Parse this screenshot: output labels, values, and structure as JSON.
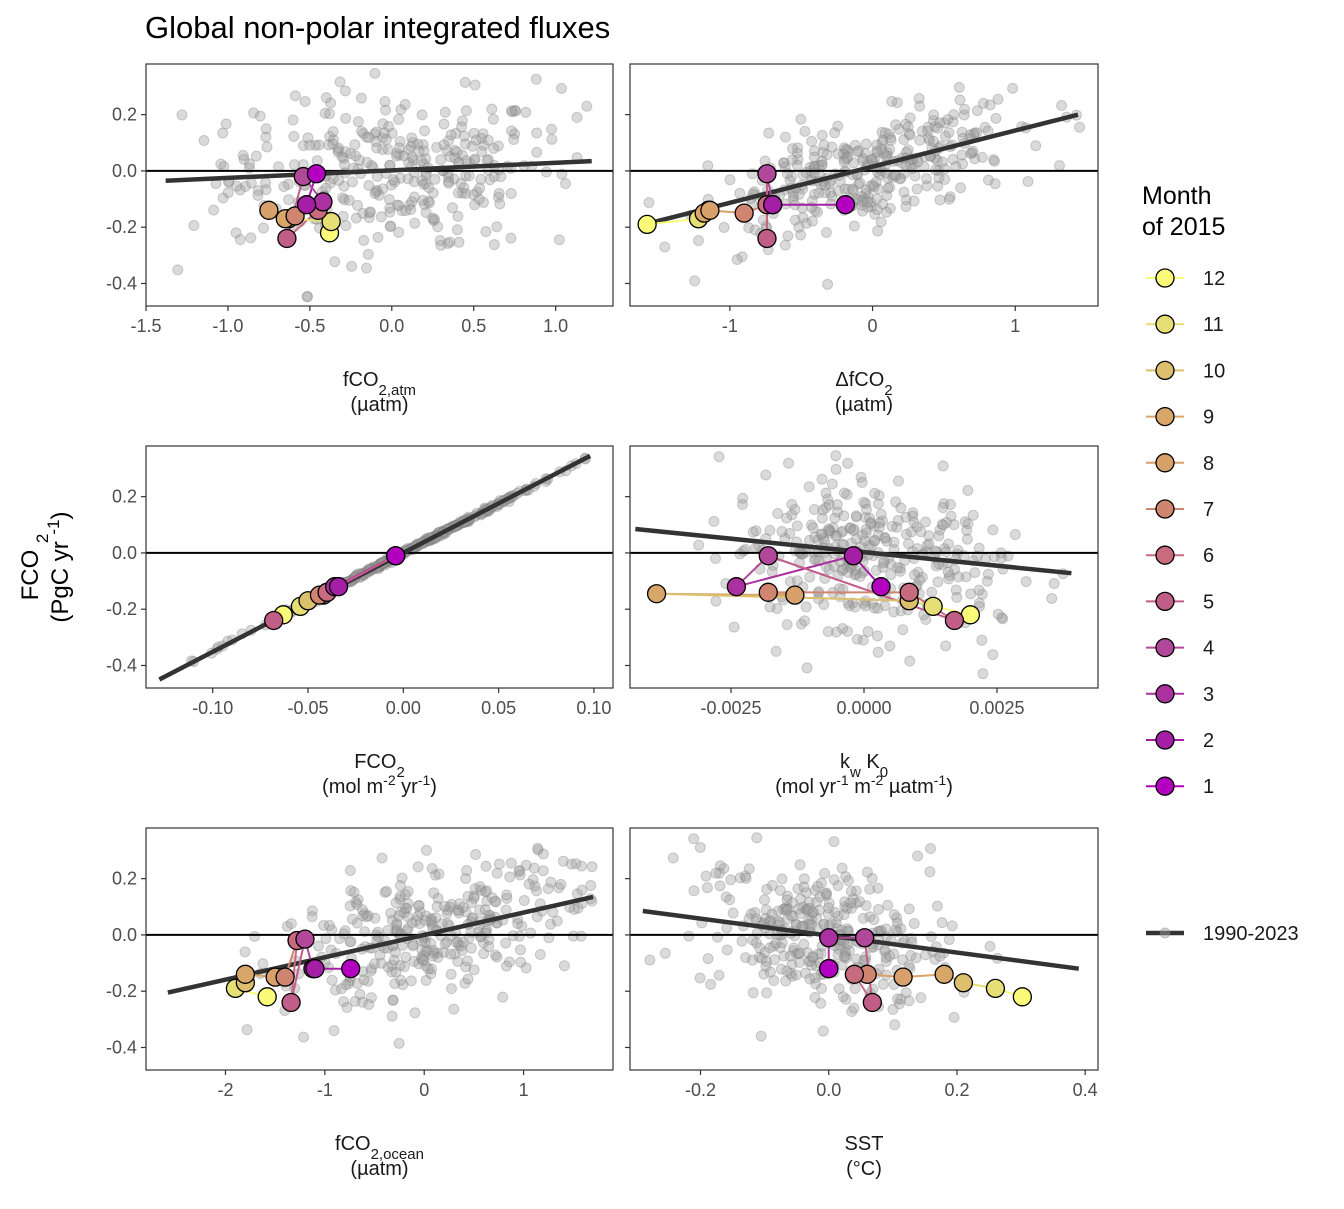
{
  "title": "Global non-polar integrated fluxes",
  "y_axis": {
    "label_line1": "FCO2",
    "label_line2": "(PgC yr-1)"
  },
  "legend": {
    "title_line1": "Month",
    "title_line2": "of 2015",
    "months": [
      "12",
      "11",
      "10",
      "9",
      "8",
      "7",
      "6",
      "5",
      "4",
      "3",
      "2",
      "1"
    ],
    "month_colors": {
      "1": "#b300c0",
      "2": "#a51fa6",
      "3": "#ab30a0",
      "4": "#b2489a",
      "5": "#c05e88",
      "6": "#c86b7e",
      "7": "#d08570",
      "8": "#d8a06a",
      "9": "#d9a66a",
      "10": "#dcc06e",
      "11": "#e6df76",
      "12": "#fbfb7a"
    },
    "line_label": "1990-2023",
    "line_color": "#333333",
    "background_point_color": "#9e9e9e"
  },
  "chart_data": [
    {
      "type": "scatter",
      "panel": "fco2-atm",
      "xlabel_main": "fCO",
      "xlabel_sub": "2,atm",
      "xlabel_unit": "(µatm)",
      "xlim": [
        -1.5,
        1.35
      ],
      "ylim": [
        -0.48,
        0.38
      ],
      "xticks": [
        -1.5,
        -1.0,
        -0.5,
        0.0,
        0.5,
        1.0
      ],
      "xtick_labels": [
        "-1.5",
        "-1.0",
        "-0.5",
        "0.0",
        "0.5",
        "1.0"
      ],
      "yticks": [
        -0.4,
        -0.2,
        0.0,
        0.2
      ],
      "ytick_labels": [
        "-0.4",
        "-0.2",
        "0.0",
        "0.2"
      ],
      "trend": {
        "x": [
          -1.38,
          1.22
        ],
        "y": [
          -0.035,
          0.035
        ]
      },
      "background": {
        "x_center": 0.0,
        "x_spread": 0.5,
        "x_min": -1.38,
        "x_max": 1.24,
        "slope": 0.027,
        "noise": 0.13
      },
      "months": [
        {
          "month": 1,
          "x": -0.46,
          "y": -0.01
        },
        {
          "month": 2,
          "x": -0.52,
          "y": -0.12
        },
        {
          "month": 3,
          "x": -0.42,
          "y": -0.11
        },
        {
          "month": 4,
          "x": -0.54,
          "y": -0.02
        },
        {
          "month": 5,
          "x": -0.64,
          "y": -0.24
        },
        {
          "month": 6,
          "x": -0.45,
          "y": -0.14
        },
        {
          "month": 7,
          "x": -0.59,
          "y": -0.16
        },
        {
          "month": 8,
          "x": -0.75,
          "y": -0.14
        },
        {
          "month": 9,
          "x": -0.65,
          "y": -0.17
        },
        {
          "month": 10,
          "x": -0.63,
          "y": -0.17
        },
        {
          "month": 11,
          "x": -0.37,
          "y": -0.18
        },
        {
          "month": 12,
          "x": -0.38,
          "y": -0.22
        }
      ]
    },
    {
      "type": "scatter",
      "panel": "delta-fco2",
      "xlabel_main": "ΔfCO",
      "xlabel_sub": "2",
      "xlabel_unit": "(µatm)",
      "xlim": [
        -1.7,
        1.58
      ],
      "ylim": [
        -0.48,
        0.38
      ],
      "xticks": [
        -1,
        0,
        1
      ],
      "xtick_labels": [
        "-1",
        "0",
        "1"
      ],
      "yticks": [
        -0.4,
        -0.2,
        0.0,
        0.2
      ],
      "ytick_labels": [
        "-0.4",
        "-0.2",
        "0.0",
        "0.2"
      ],
      "trend": {
        "x": [
          -1.52,
          1.44
        ],
        "y": [
          -0.18,
          0.2
        ]
      },
      "background": {
        "x_center": 0.0,
        "x_spread": 0.55,
        "x_min": -1.62,
        "x_max": 1.48,
        "slope": 0.13,
        "noise": 0.09
      },
      "months": [
        {
          "month": 1,
          "x": -0.19,
          "y": -0.12
        },
        {
          "month": 2,
          "x": -0.7,
          "y": -0.12
        },
        {
          "month": 3,
          "x": -0.7,
          "y": -0.12
        },
        {
          "month": 4,
          "x": -0.74,
          "y": -0.01
        },
        {
          "month": 5,
          "x": -0.74,
          "y": -0.24
        },
        {
          "month": 6,
          "x": -0.74,
          "y": -0.12
        },
        {
          "month": 7,
          "x": -0.9,
          "y": -0.15
        },
        {
          "month": 8,
          "x": -1.14,
          "y": -0.14
        },
        {
          "month": 9,
          "x": -1.18,
          "y": -0.15
        },
        {
          "month": 10,
          "x": -1.15,
          "y": -0.14
        },
        {
          "month": 11,
          "x": -1.22,
          "y": -0.17
        },
        {
          "month": 12,
          "x": -1.58,
          "y": -0.19
        }
      ]
    },
    {
      "type": "scatter",
      "panel": "fco2-flux",
      "xlabel_main": "FCO",
      "xlabel_sub": "2",
      "xlabel_unit": "(mol m-2 yr-1)",
      "xlim": [
        -0.135,
        0.11
      ],
      "ylim": [
        -0.48,
        0.38
      ],
      "xticks": [
        -0.1,
        -0.05,
        0.0,
        0.05,
        0.1
      ],
      "xtick_labels": [
        "-0.10",
        "-0.05",
        "0.00",
        "0.05",
        "0.10"
      ],
      "yticks": [
        -0.4,
        -0.2,
        0.0,
        0.2
      ],
      "ytick_labels": [
        "-0.4",
        "-0.2",
        "0.0",
        "0.2"
      ],
      "trend": {
        "x": [
          -0.128,
          0.098
        ],
        "y": [
          -0.45,
          0.345
        ]
      },
      "background": {
        "x_center": 0.0,
        "x_spread": 0.04,
        "x_min": -0.128,
        "x_max": 0.098,
        "slope": 3.5,
        "noise": 0.004
      },
      "months": [
        {
          "month": 1,
          "x": -0.004,
          "y": -0.01
        },
        {
          "month": 2,
          "x": -0.034,
          "y": -0.12
        },
        {
          "month": 3,
          "x": -0.036,
          "y": -0.12
        },
        {
          "month": 4,
          "x": -0.004,
          "y": -0.01
        },
        {
          "month": 5,
          "x": -0.068,
          "y": -0.24
        },
        {
          "month": 6,
          "x": -0.04,
          "y": -0.14
        },
        {
          "month": 7,
          "x": -0.044,
          "y": -0.15
        },
        {
          "month": 8,
          "x": -0.04,
          "y": -0.14
        },
        {
          "month": 9,
          "x": -0.042,
          "y": -0.15
        },
        {
          "month": 10,
          "x": -0.05,
          "y": -0.17
        },
        {
          "month": 11,
          "x": -0.054,
          "y": -0.19
        },
        {
          "month": 12,
          "x": -0.063,
          "y": -0.22
        }
      ]
    },
    {
      "type": "scatter",
      "panel": "kw-k0",
      "xlabel_main": "k",
      "xlabel_sub": "w",
      "xlabel_main2": " K",
      "xlabel_sub2": "0",
      "xlabel_unit": "(mol yr-1 m-2 µatm-1)",
      "xlim": [
        -0.0044,
        0.0044
      ],
      "ylim": [
        -0.48,
        0.38
      ],
      "xticks": [
        -0.0025,
        0.0,
        0.0025
      ],
      "xtick_labels": [
        "-0.0025",
        "0.0000",
        "0.0025"
      ],
      "yticks": [
        -0.4,
        -0.2,
        0.0,
        0.2
      ],
      "ytick_labels": [
        "-0.4",
        "-0.2",
        "0.0",
        "0.2"
      ],
      "trend": {
        "x": [
          -0.0043,
          0.0039
        ],
        "y": [
          0.085,
          -0.072
        ]
      },
      "background": {
        "x_center": 0.0,
        "x_spread": 0.0013,
        "x_min": -0.0043,
        "x_max": 0.004,
        "slope": -19,
        "noise": 0.13
      },
      "months": [
        {
          "month": 1,
          "x": 0.00032,
          "y": -0.12
        },
        {
          "month": 2,
          "x": -0.0002,
          "y": -0.01
        },
        {
          "month": 3,
          "x": -0.0024,
          "y": -0.12
        },
        {
          "month": 4,
          "x": -0.0018,
          "y": -0.01
        },
        {
          "month": 5,
          "x": 0.0017,
          "y": -0.24
        },
        {
          "month": 6,
          "x": 0.00085,
          "y": -0.14
        },
        {
          "month": 7,
          "x": -0.0018,
          "y": -0.14
        },
        {
          "month": 8,
          "x": -0.0013,
          "y": -0.15
        },
        {
          "month": 9,
          "x": -0.0039,
          "y": -0.145
        },
        {
          "month": 10,
          "x": 0.00085,
          "y": -0.17
        },
        {
          "month": 11,
          "x": 0.0013,
          "y": -0.19
        },
        {
          "month": 12,
          "x": 0.002,
          "y": -0.22
        }
      ]
    },
    {
      "type": "scatter",
      "panel": "fco2-ocean",
      "xlabel_main": "fCO",
      "xlabel_sub": "2,ocean",
      "xlabel_unit": "(µatm)",
      "xlim": [
        -2.8,
        1.9
      ],
      "ylim": [
        -0.48,
        0.38
      ],
      "xticks": [
        -2,
        -1,
        0,
        1
      ],
      "xtick_labels": [
        "-2",
        "-1",
        "0",
        "1"
      ],
      "yticks": [
        -0.4,
        -0.2,
        0.0,
        0.2
      ],
      "ytick_labels": [
        "-0.4",
        "-0.2",
        "0.0",
        "0.2"
      ],
      "trend": {
        "x": [
          -2.58,
          1.7
        ],
        "y": [
          -0.205,
          0.135
        ]
      },
      "background": {
        "x_center": 0.0,
        "x_spread": 0.75,
        "x_min": -2.6,
        "x_max": 1.72,
        "slope": 0.08,
        "noise": 0.11
      },
      "months": [
        {
          "month": 1,
          "x": -0.74,
          "y": -0.12
        },
        {
          "month": 2,
          "x": -1.1,
          "y": -0.12
        },
        {
          "month": 3,
          "x": -1.12,
          "y": -0.12
        },
        {
          "month": 4,
          "x": -1.2,
          "y": -0.015
        },
        {
          "month": 5,
          "x": -1.34,
          "y": -0.24
        },
        {
          "month": 6,
          "x": -1.28,
          "y": -0.02
        },
        {
          "month": 7,
          "x": -1.4,
          "y": -0.15
        },
        {
          "month": 8,
          "x": -1.5,
          "y": -0.15
        },
        {
          "month": 9,
          "x": -1.8,
          "y": -0.14
        },
        {
          "month": 10,
          "x": -1.8,
          "y": -0.17
        },
        {
          "month": 11,
          "x": -1.9,
          "y": -0.19
        },
        {
          "month": 12,
          "x": -1.58,
          "y": -0.22
        }
      ]
    },
    {
      "type": "scatter",
      "panel": "sst",
      "xlabel_main": "SST",
      "xlabel_sub": "",
      "xlabel_unit": "(°C)",
      "xlim": [
        -0.31,
        0.42
      ],
      "ylim": [
        -0.48,
        0.38
      ],
      "xticks": [
        -0.2,
        0.0,
        0.2,
        0.4
      ],
      "xtick_labels": [
        "-0.2",
        "0.0",
        "0.2",
        "0.4"
      ],
      "yticks": [
        -0.4,
        -0.2,
        0.0,
        0.2
      ],
      "ytick_labels": [
        "-0.4",
        "-0.2",
        "0.0",
        "0.2"
      ],
      "trend": {
        "x": [
          -0.29,
          0.39
        ],
        "y": [
          0.085,
          -0.12
        ]
      },
      "background": {
        "x_center": 0.0,
        "x_spread": 0.1,
        "x_min": -0.29,
        "x_max": 0.39,
        "slope": -0.3,
        "noise": 0.13
      },
      "months": [
        {
          "month": 1,
          "x": 0.0,
          "y": -0.12
        },
        {
          "month": 2,
          "x": 0.0,
          "y": -0.12
        },
        {
          "month": 3,
          "x": 0.0,
          "y": -0.01
        },
        {
          "month": 4,
          "x": 0.056,
          "y": -0.01
        },
        {
          "month": 5,
          "x": 0.068,
          "y": -0.24
        },
        {
          "month": 6,
          "x": 0.04,
          "y": -0.14
        },
        {
          "month": 7,
          "x": 0.06,
          "y": -0.14
        },
        {
          "month": 8,
          "x": 0.116,
          "y": -0.15
        },
        {
          "month": 9,
          "x": 0.18,
          "y": -0.14
        },
        {
          "month": 10,
          "x": 0.21,
          "y": -0.17
        },
        {
          "month": 11,
          "x": 0.26,
          "y": -0.19
        },
        {
          "month": 12,
          "x": 0.302,
          "y": -0.22
        }
      ]
    }
  ]
}
